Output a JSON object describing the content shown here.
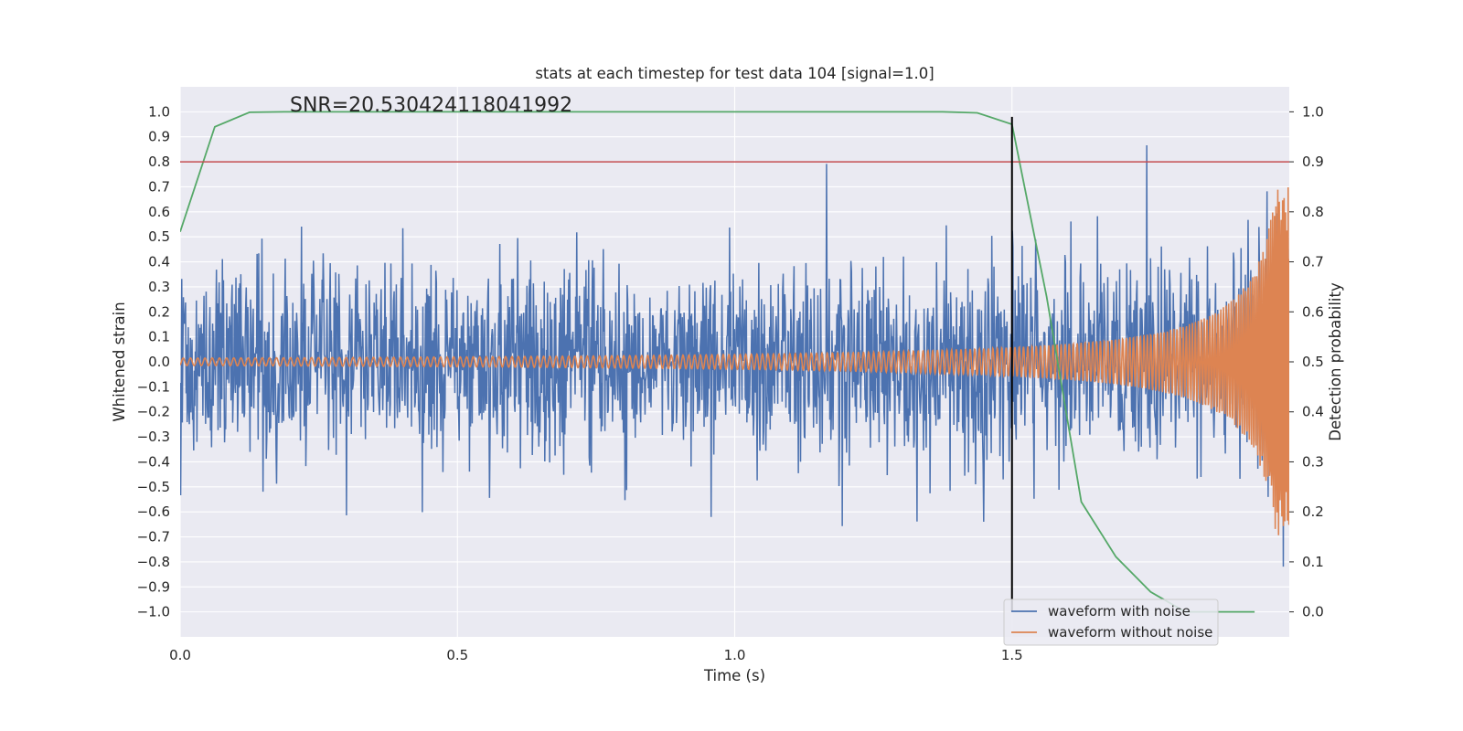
{
  "chart_data": {
    "type": "line",
    "title": "stats at each timestep for test data 104 [signal=1.0]",
    "xlabel": "Time (s)",
    "ylabel": "Whitened strain",
    "y2label": "Detection probability",
    "annotation": "SNR=20.530424118041992",
    "xlim": [
      0.0,
      2.0
    ],
    "ylim": [
      -1.1,
      1.1
    ],
    "y2lim": [
      -0.05,
      1.05
    ],
    "x_ticks": [
      "0.0",
      "0.5",
      "1.0",
      "1.5"
    ],
    "x_tick_values": [
      0.0,
      0.5,
      1.0,
      1.5
    ],
    "y_ticks": [
      "1.0",
      "0.9",
      "0.8",
      "0.7",
      "0.6",
      "0.5",
      "0.4",
      "0.3",
      "0.2",
      "0.1",
      "0.0",
      "−0.1",
      "−0.2",
      "−0.3",
      "−0.4",
      "−0.5",
      "−0.6",
      "−0.7",
      "−0.8",
      "−0.9",
      "−1.0"
    ],
    "y_tick_values": [
      1.0,
      0.9,
      0.8,
      0.7,
      0.6,
      0.5,
      0.4,
      0.3,
      0.2,
      0.1,
      0.0,
      -0.1,
      -0.2,
      -0.3,
      -0.4,
      -0.5,
      -0.6,
      -0.7,
      -0.8,
      -0.9,
      -1.0
    ],
    "y2_ticks": [
      "1.0",
      "0.9",
      "0.8",
      "0.7",
      "0.6",
      "0.5",
      "0.4",
      "0.3",
      "0.2",
      "0.1",
      "0.0"
    ],
    "y2_tick_values": [
      1.0,
      0.9,
      0.8,
      0.7,
      0.6,
      0.5,
      0.4,
      0.3,
      0.2,
      0.1,
      0.0
    ],
    "grid": true,
    "legend_position": "lower-right",
    "series": [
      {
        "name": "waveform with noise",
        "color": "#4c72b0",
        "axis": "left",
        "kind": "noise",
        "n_points": 2048,
        "amplitude_std": 0.2,
        "x_range": [
          0.0,
          2.0
        ]
      },
      {
        "name": "waveform without noise",
        "color": "#dd8452",
        "axis": "left",
        "kind": "chirp",
        "x_range": [
          0.0,
          2.0
        ],
        "start_amplitude": 0.015,
        "end_amplitude": 0.7
      },
      {
        "name": "",
        "color": "#55a868",
        "axis": "right",
        "x": [
          0.0,
          0.0625,
          0.125,
          0.1875,
          0.25,
          0.5,
          0.75,
          1.0,
          1.25,
          1.375,
          1.4375,
          1.5,
          1.5625,
          1.625,
          1.6875,
          1.75,
          1.8125,
          1.875,
          1.9375
        ],
        "values": [
          0.76,
          0.97,
          0.999,
          1.0,
          1.0,
          1.0,
          1.0,
          1.0,
          1.0,
          1.0,
          0.998,
          0.975,
          0.63,
          0.22,
          0.11,
          0.04,
          0.0,
          0.0,
          0.0
        ]
      }
    ],
    "reference_lines": [
      {
        "orientation": "horizontal",
        "axis": "right",
        "value": 0.9,
        "color": "#c44e52"
      },
      {
        "orientation": "vertical",
        "value": 1.5,
        "y_range": [
          -1.0,
          0.98
        ],
        "color": "#000000"
      }
    ]
  }
}
